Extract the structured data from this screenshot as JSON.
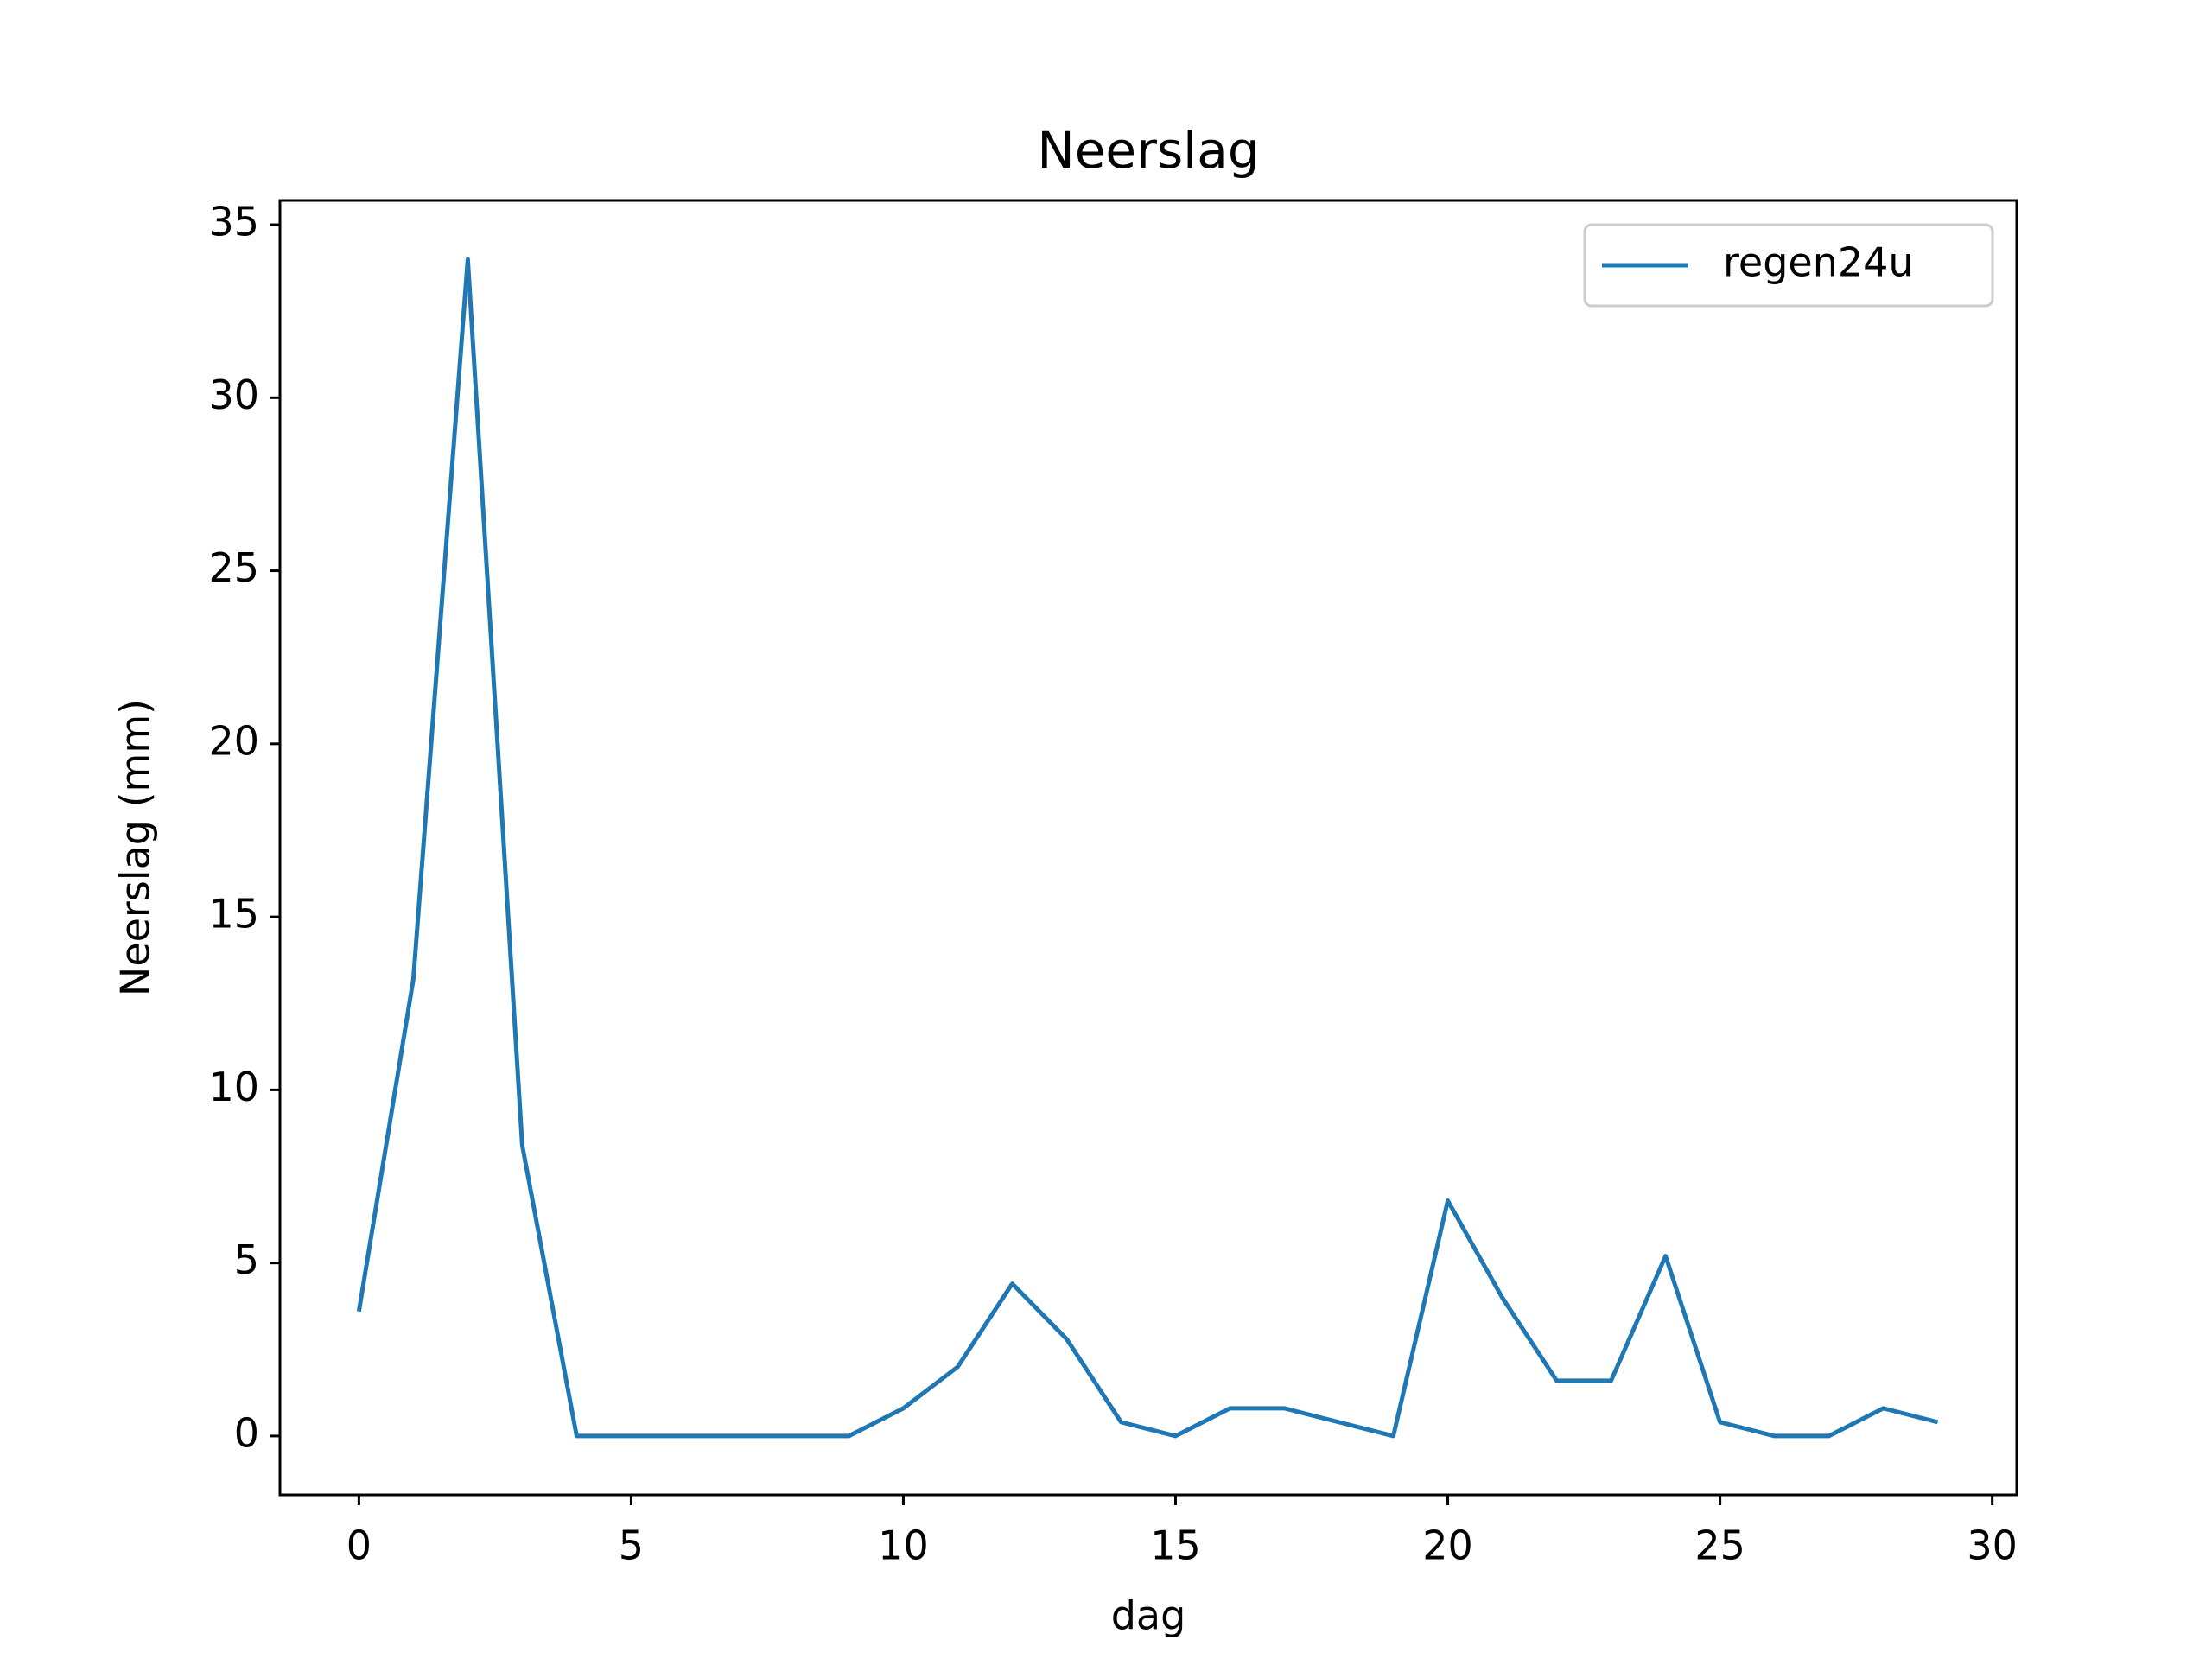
{
  "chart_data": {
    "type": "line",
    "title": "Neerslag",
    "xlabel": "dag",
    "ylabel": "Neerslag (mm)",
    "x": [
      0,
      1,
      2,
      3,
      4,
      5,
      6,
      7,
      8,
      9,
      10,
      11,
      12,
      13,
      14,
      15,
      16,
      17,
      18,
      19,
      20,
      21,
      22,
      23,
      24,
      25,
      26,
      27,
      28,
      29
    ],
    "series": [
      {
        "name": "regen24u",
        "color": "#1f77b4",
        "values": [
          3.6,
          13.2,
          34,
          8.4,
          0,
          0,
          0,
          0,
          0,
          0,
          0.8,
          2,
          4.4,
          2.8,
          0.4,
          0,
          0.8,
          0.8,
          0.4,
          0,
          6.8,
          4,
          1.6,
          1.6,
          5.2,
          0.4,
          0,
          0,
          0.8,
          0.4
        ]
      }
    ],
    "xlim": [
      -1.45,
      30.45
    ],
    "xticks": [
      0,
      5,
      10,
      15,
      20,
      25,
      30
    ],
    "ylim": [
      -1.7,
      35.7
    ],
    "yticks": [
      0,
      5,
      10,
      15,
      20,
      25,
      30,
      35
    ],
    "legend": "upper right"
  }
}
